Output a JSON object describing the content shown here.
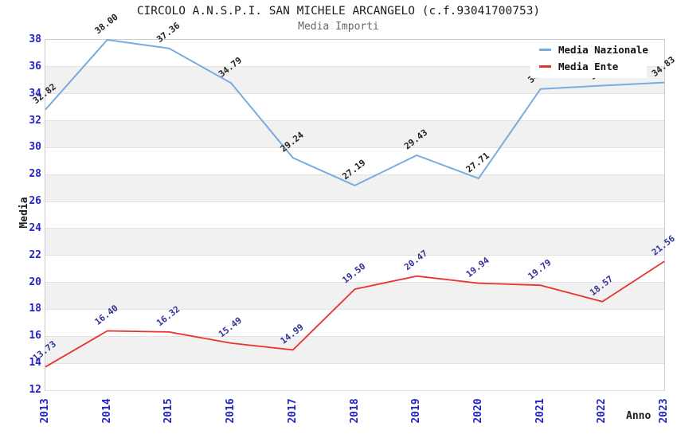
{
  "chart_data": {
    "type": "line",
    "title": "CIRCOLO A.N.S.P.I. SAN MICHELE ARCANGELO (c.f.93041700753)",
    "subtitle": "Media Importi",
    "xlabel": "Anno",
    "ylabel": "Media",
    "x": [
      "2013",
      "2014",
      "2015",
      "2016",
      "2017",
      "2018",
      "2019",
      "2020",
      "2021",
      "2022",
      "2023"
    ],
    "ylim": [
      12,
      38
    ],
    "y_ticks": [
      "38",
      "36",
      "34",
      "32",
      "30",
      "28",
      "26",
      "24",
      "22",
      "20",
      "18",
      "16",
      "14",
      "12"
    ],
    "grid": "horizontal-gridlines-with-alternating-bands",
    "legend_position": "top-right-inside-plot",
    "series": [
      {
        "name": "Media Nazionale",
        "color": "#7aabdf",
        "label_color": "#222222",
        "values": [
          32.82,
          38.0,
          37.36,
          34.79,
          29.24,
          27.19,
          29.43,
          27.71,
          34.35,
          34.6,
          34.83
        ],
        "labels": [
          "32.82",
          "38.00",
          "37.36",
          "34.79",
          "29.24",
          "27.19",
          "29.43",
          "27.71",
          "34.35",
          "34.60",
          "34.83"
        ]
      },
      {
        "name": "Media Ente",
        "color": "#e8322c",
        "label_color": "#333399",
        "values": [
          13.73,
          16.4,
          16.32,
          15.49,
          14.99,
          19.5,
          20.47,
          19.94,
          19.79,
          18.57,
          21.56
        ],
        "labels": [
          "13.73",
          "16.40",
          "16.32",
          "15.49",
          "14.99",
          "19.50",
          "20.47",
          "19.94",
          "19.79",
          "18.57",
          "21.56"
        ]
      }
    ],
    "style": {
      "tick_label_color": "#2323c8",
      "band_color": "#f1f1f1",
      "gridline_color": "#e2e2e2",
      "plot_border_color": "#cccccc",
      "title_color": "#1c1c1c",
      "subtitle_color": "#666666"
    }
  }
}
